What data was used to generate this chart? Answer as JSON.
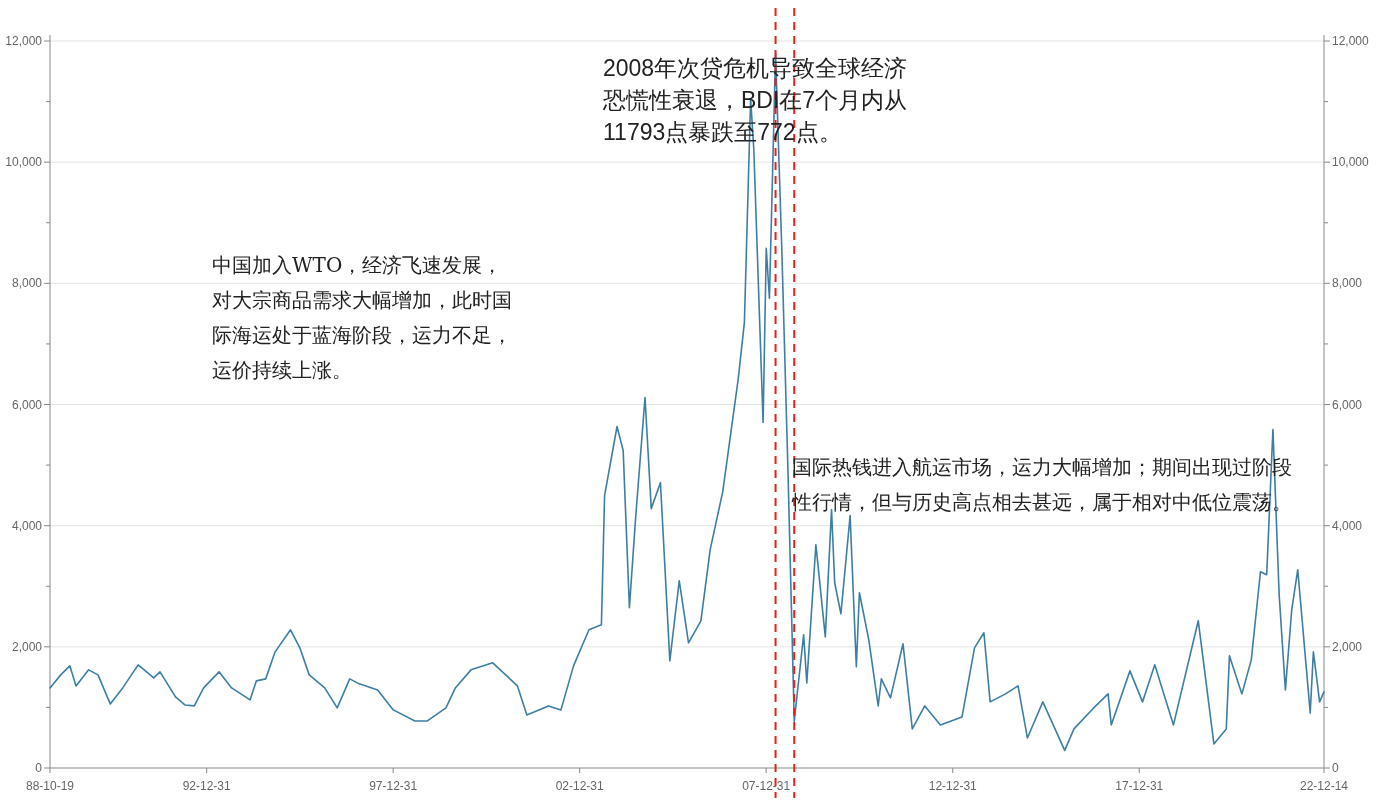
{
  "chart_data": {
    "type": "line",
    "xlim": [
      "1988-10-19",
      "2022-12-14"
    ],
    "xticks": [
      {
        "value": "1988-10-19",
        "label": "88-10-19"
      },
      {
        "value": "1992-12-31",
        "label": "92-12-31"
      },
      {
        "value": "1997-12-31",
        "label": "97-12-31"
      },
      {
        "value": "2002-12-31",
        "label": "02-12-31"
      },
      {
        "value": "2007-12-31",
        "label": "07-12-31"
      },
      {
        "value": "2012-12-31",
        "label": "12-12-31"
      },
      {
        "value": "2017-12-31",
        "label": "17-12-31"
      },
      {
        "value": "2022-12-14",
        "label": "22-12-14"
      }
    ],
    "ylim": [
      0,
      12000
    ],
    "yticks": [
      {
        "value": 0,
        "label": "0"
      },
      {
        "value": 1000,
        "label": null
      },
      {
        "value": 2000,
        "label": "2,000"
      },
      {
        "value": 3000,
        "label": null
      },
      {
        "value": 4000,
        "label": "4,000"
      },
      {
        "value": 5000,
        "label": null
      },
      {
        "value": 6000,
        "label": "6,000"
      },
      {
        "value": 7000,
        "label": null
      },
      {
        "value": 8000,
        "label": "8,000"
      },
      {
        "value": 9000,
        "label": null
      },
      {
        "value": 10000,
        "label": "10,000"
      },
      {
        "value": 11000,
        "label": null
      },
      {
        "value": 12000,
        "label": "12,000"
      }
    ],
    "y2lim": [
      0,
      12000
    ],
    "y2ticks": [
      {
        "value": 0,
        "label": "0"
      },
      {
        "value": 1000,
        "label": null
      },
      {
        "value": 2000,
        "label": "2,000"
      },
      {
        "value": 3000,
        "label": null
      },
      {
        "value": 4000,
        "label": "4,000"
      },
      {
        "value": 5000,
        "label": null
      },
      {
        "value": 6000,
        "label": "6,000"
      },
      {
        "value": 7000,
        "label": null
      },
      {
        "value": 8000,
        "label": "8,000"
      },
      {
        "value": 9000,
        "label": null
      },
      {
        "value": 10000,
        "label": "10,000"
      },
      {
        "value": 11000,
        "label": null
      },
      {
        "value": 12000,
        "label": "12,000"
      }
    ],
    "grid": "y",
    "x": [
      "1988-10-19",
      "1989-02",
      "1989-05",
      "1989-07",
      "1989-11",
      "1990-02",
      "1990-06",
      "1990-10",
      "1991-03",
      "1991-08",
      "1991-10",
      "1992-03",
      "1992-06",
      "1992-09",
      "1992-12",
      "1993-05",
      "1993-09",
      "1994-03",
      "1994-05",
      "1994-08",
      "1994-11",
      "1995-04",
      "1995-07",
      "1995-10",
      "1996-03",
      "1996-07",
      "1996-11",
      "1997-02",
      "1997-08",
      "1998-01",
      "1998-08",
      "1998-12",
      "1999-06",
      "1999-09",
      "2000-02",
      "2000-09",
      "2001-05",
      "2001-08",
      "2002-03",
      "2002-07",
      "2002-11",
      "2003-04",
      "2003-08",
      "2003-09",
      "2004-01",
      "2004-03",
      "2004-05",
      "2004-07",
      "2004-10",
      "2004-12",
      "2005-03",
      "2005-06",
      "2005-09",
      "2005-12",
      "2006-04",
      "2006-07",
      "2006-11",
      "2007-04",
      "2007-06",
      "2007-08",
      "2007-09",
      "2007-12",
      "2008-01",
      "2008-02",
      "2008-04",
      "2008-06",
      "2008-08",
      "2008-10",
      "2009-01",
      "2009-02",
      "2009-05",
      "2009-08",
      "2009-10",
      "2009-11",
      "2010-01",
      "2010-04",
      "2010-06",
      "2010-07",
      "2010-10",
      "2011-01",
      "2011-02",
      "2011-05",
      "2011-09",
      "2011-12",
      "2012-04",
      "2012-09",
      "2013-04",
      "2013-08",
      "2013-11",
      "2014-01",
      "2014-06",
      "2014-10",
      "2015-01",
      "2015-06",
      "2016-01",
      "2016-04",
      "2016-10",
      "2017-03",
      "2017-04",
      "2017-10",
      "2018-02",
      "2018-06",
      "2018-12",
      "2019-08",
      "2020-01",
      "2020-05",
      "2020-06",
      "2020-10",
      "2021-01",
      "2021-04",
      "2021-06",
      "2021-08",
      "2021-10",
      "2021-12",
      "2022-02",
      "2022-04",
      "2022-08",
      "2022-09",
      "2022-11",
      "2022-12-14"
    ],
    "series": [
      {
        "color": "#3d7fa3",
        "values": [
          1322,
          1537,
          1686,
          1355,
          1620,
          1537,
          1058,
          1322,
          1703,
          1488,
          1587,
          1174,
          1041,
          1025,
          1322,
          1587,
          1322,
          1124,
          1438,
          1471,
          1917,
          2281,
          1984,
          1537,
          1322,
          992,
          1471,
          1389,
          1289,
          959,
          777,
          777,
          992,
          1322,
          1620,
          1736,
          1355,
          876,
          1025,
          959,
          1686,
          2281,
          2364,
          4496,
          5637,
          5240,
          2645,
          4133,
          6116,
          4281,
          4711,
          1769,
          3091,
          2066,
          2430,
          3604,
          4562,
          6414,
          7356,
          11042,
          10216,
          5703,
          8579,
          7753,
          11793,
          8579,
          4876,
          772,
          2198,
          1405,
          3686,
          2165,
          4265,
          3058,
          2546,
          4166,
          1670,
          2893,
          2116,
          1025,
          1471,
          1157,
          2050,
          645,
          1025,
          711,
          843,
          1984,
          2232,
          1091,
          1223,
          1355,
          496,
          1091,
          290,
          645,
          975,
          1223,
          711,
          1603,
          1091,
          1703,
          711,
          2430,
          397,
          645,
          1851,
          1223,
          1785,
          3240,
          3190,
          5587,
          2860,
          1289,
          2612,
          3273,
          909,
          1917,
          1091,
          1256
        ]
      }
    ],
    "ref_lines": [
      {
        "axis": "x",
        "value": "2008-04",
        "color": "#e02424",
        "line_style": "dashed"
      },
      {
        "axis": "x",
        "value": "2008-10",
        "color": "#e02424",
        "line_style": "dashed"
      }
    ],
    "annotations": [
      "中国加入WTO，经济飞速发展，对大宗商品需求大幅增加，此时国际海运处于蓝海阶段，运力不足，运价持续上涨。",
      "2008年次贷危机导致全球经济恐慌性衰退，BDI在7个月内从11793点暴跌至772点。",
      "国际热钱进入航运市场，运力大幅增加；期间出现过阶段性行情，但与历史高点相去甚远，属于相对中低位震荡。"
    ]
  }
}
